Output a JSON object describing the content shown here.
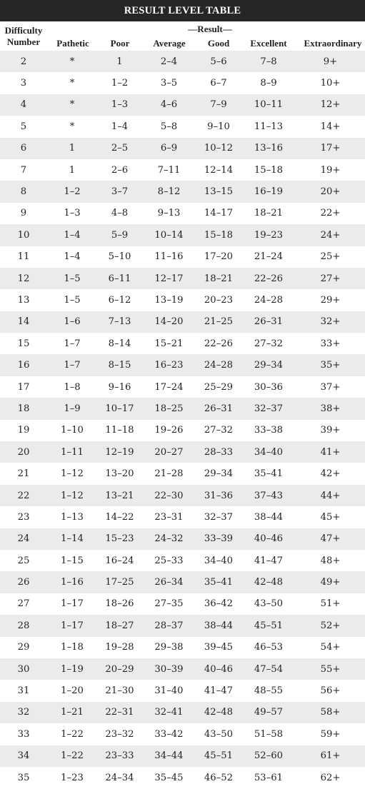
{
  "title": "RESULT LEVEL TABLE",
  "header": {
    "group_label": "—Result—",
    "difficulty_line1": "Difficulty",
    "difficulty_line2": "Number",
    "columns": [
      "Pathetic",
      "Poor",
      "Average",
      "Good",
      "Excellent",
      "Extraordinary"
    ]
  },
  "rows": [
    [
      "2",
      "*",
      "1",
      "2–4",
      "5–6",
      "7–8",
      "9+"
    ],
    [
      "3",
      "*",
      "1–2",
      "3–5",
      "6–7",
      "8–9",
      "10+"
    ],
    [
      "4",
      "*",
      "1–3",
      "4–6",
      "7–9",
      "10–11",
      "12+"
    ],
    [
      "5",
      "*",
      "1–4",
      "5–8",
      "9–10",
      "11–13",
      "14+"
    ],
    [
      "6",
      "1",
      "2–5",
      "6–9",
      "10–12",
      "13–16",
      "17+"
    ],
    [
      "7",
      "1",
      "2–6",
      "7–11",
      "12–14",
      "15–18",
      "19+"
    ],
    [
      "8",
      "1–2",
      "3–7",
      "8–12",
      "13–15",
      "16–19",
      "20+"
    ],
    [
      "9",
      "1–3",
      "4–8",
      "9–13",
      "14–17",
      "18–21",
      "22+"
    ],
    [
      "10",
      "1–4",
      "5–9",
      "10–14",
      "15–18",
      "19–23",
      "24+"
    ],
    [
      "11",
      "1–4",
      "5–10",
      "11–16",
      "17–20",
      "21–24",
      "25+"
    ],
    [
      "12",
      "1–5",
      "6–11",
      "12–17",
      "18–21",
      "22–26",
      "27+"
    ],
    [
      "13",
      "1–5",
      "6–12",
      "13–19",
      "20–23",
      "24–28",
      "29+"
    ],
    [
      "14",
      "1–6",
      "7–13",
      "14–20",
      "21–25",
      "26–31",
      "32+"
    ],
    [
      "15",
      "1–7",
      "8–14",
      "15–21",
      "22–26",
      "27–32",
      "33+"
    ],
    [
      "16",
      "1–7",
      "8–15",
      "16–23",
      "24–28",
      "29–34",
      "35+"
    ],
    [
      "17",
      "1–8",
      "9–16",
      "17–24",
      "25–29",
      "30–36",
      "37+"
    ],
    [
      "18",
      "1–9",
      "10–17",
      "18–25",
      "26–31",
      "32–37",
      "38+"
    ],
    [
      "19",
      "1–10",
      "11–18",
      "19–26",
      "27–32",
      "33–38",
      "39+"
    ],
    [
      "20",
      "1–11",
      "12–19",
      "20–27",
      "28–33",
      "34–40",
      "41+"
    ],
    [
      "21",
      "1–12",
      "13–20",
      "21–28",
      "29–34",
      "35–41",
      "42+"
    ],
    [
      "22",
      "1–12",
      "13–21",
      "22–30",
      "31–36",
      "37–43",
      "44+"
    ],
    [
      "23",
      "1–13",
      "14–22",
      "23–31",
      "32–37",
      "38–44",
      "45+"
    ],
    [
      "24",
      "1–14",
      "15–23",
      "24–32",
      "33–39",
      "40–46",
      "47+"
    ],
    [
      "25",
      "1–15",
      "16–24",
      "25–33",
      "34–40",
      "41–47",
      "48+"
    ],
    [
      "26",
      "1–16",
      "17–25",
      "26–34",
      "35–41",
      "42–48",
      "49+"
    ],
    [
      "27",
      "1–17",
      "18–26",
      "27–35",
      "36–42",
      "43–50",
      "51+"
    ],
    [
      "28",
      "1–17",
      "18–27",
      "28–37",
      "38–44",
      "45–51",
      "52+"
    ],
    [
      "29",
      "1–18",
      "19–28",
      "29–38",
      "39–45",
      "46–53",
      "54+"
    ],
    [
      "30",
      "1–19",
      "20–29",
      "30–39",
      "40–46",
      "47–54",
      "55+"
    ],
    [
      "31",
      "1–20",
      "21–30",
      "31–40",
      "41–47",
      "48–55",
      "56+"
    ],
    [
      "32",
      "1–21",
      "22–31",
      "32–41",
      "42–48",
      "49–57",
      "58+"
    ],
    [
      "33",
      "1–22",
      "23–32",
      "33–42",
      "43–50",
      "51–58",
      "59+"
    ],
    [
      "34",
      "1–22",
      "23–33",
      "34–44",
      "45–51",
      "52–60",
      "61+"
    ],
    [
      "35",
      "1–23",
      "24–34",
      "35–45",
      "46–52",
      "53–61",
      "62+"
    ]
  ]
}
